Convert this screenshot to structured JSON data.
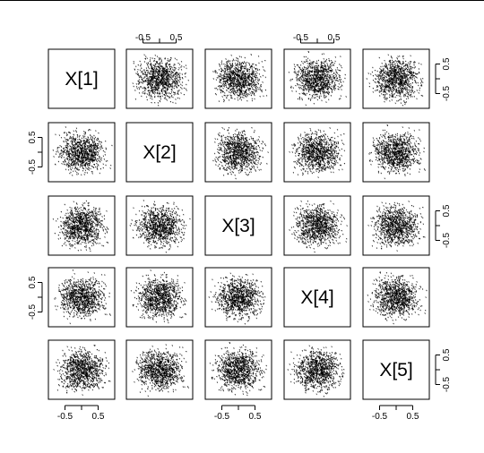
{
  "chart_data": {
    "type": "scatter-matrix",
    "variables": [
      "X[1]",
      "X[2]",
      "X[3]",
      "X[4]",
      "X[5]"
    ],
    "axis_range": [
      -1,
      1
    ],
    "tick_values": [
      -0.5,
      0.5
    ],
    "tick_labels": [
      "-0.5",
      "0.5"
    ],
    "axes": {
      "top": [
        1,
        3
      ],
      "bottom": [
        0,
        2,
        4
      ],
      "left": [
        1,
        3
      ],
      "right": [
        0,
        2,
        4
      ]
    },
    "point_color": "#000000",
    "points_per_panel": 1000,
    "distribution": "uniform-like cloud centered at 0, spread about ±0.8",
    "grid": false,
    "legend": "none"
  }
}
